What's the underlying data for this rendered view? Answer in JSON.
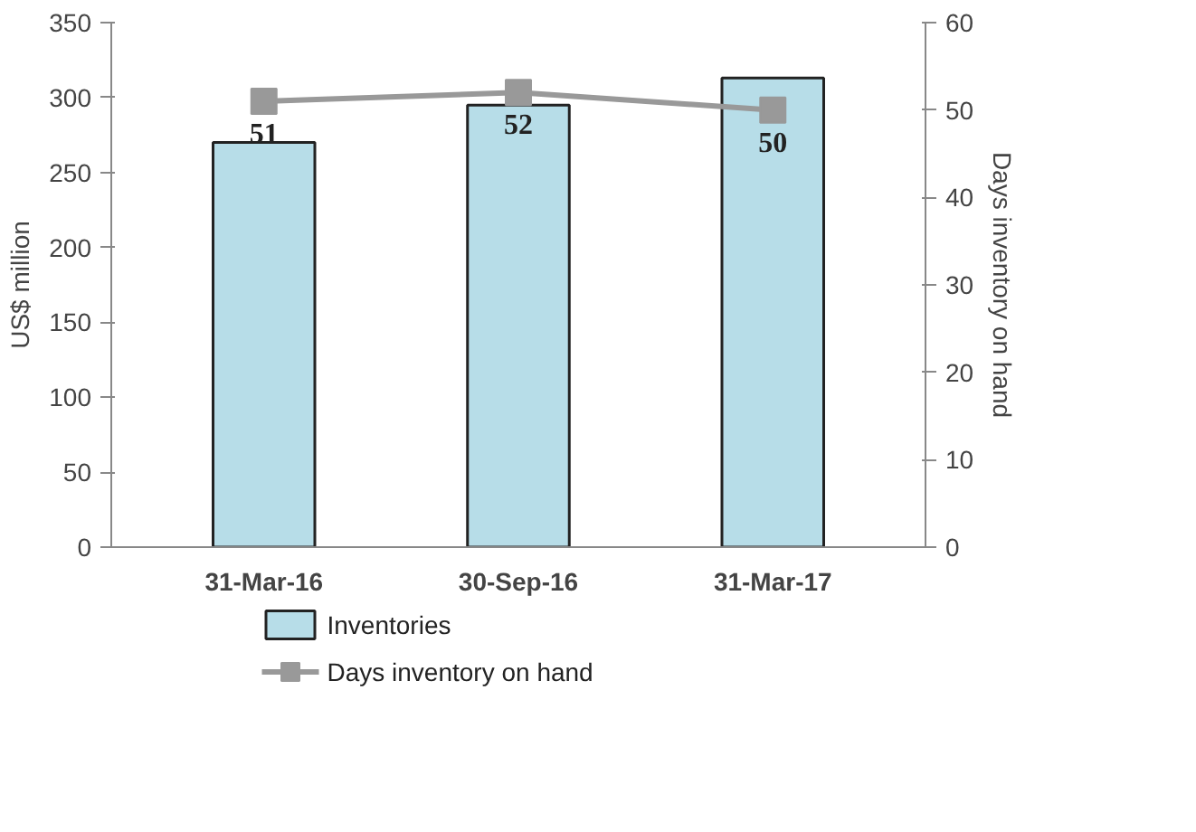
{
  "chart_data": {
    "type": "bar",
    "categories": [
      "31-Mar-16",
      "30-Sep-16",
      "31-Mar-17"
    ],
    "ylabel": "US$ million",
    "y2label": "Days inventory on hand",
    "ylim": [
      0,
      350
    ],
    "yticks": [
      0,
      50,
      100,
      150,
      200,
      250,
      300,
      350
    ],
    "y2lim": [
      0,
      60
    ],
    "y2ticks": [
      0,
      10,
      20,
      30,
      40,
      50,
      60
    ],
    "legend": "bottom",
    "grid": false,
    "series": [
      {
        "name": "Inventories",
        "color": "#b7dde8",
        "values": [
          270,
          295,
          313
        ]
      },
      {
        "name": "Days inventory on hand",
        "type": "line",
        "axis": "y2",
        "color": "#999999",
        "marker": "square",
        "values": [
          51,
          52,
          50
        ],
        "value_labels": [
          "51",
          "52",
          "50"
        ]
      }
    ]
  }
}
